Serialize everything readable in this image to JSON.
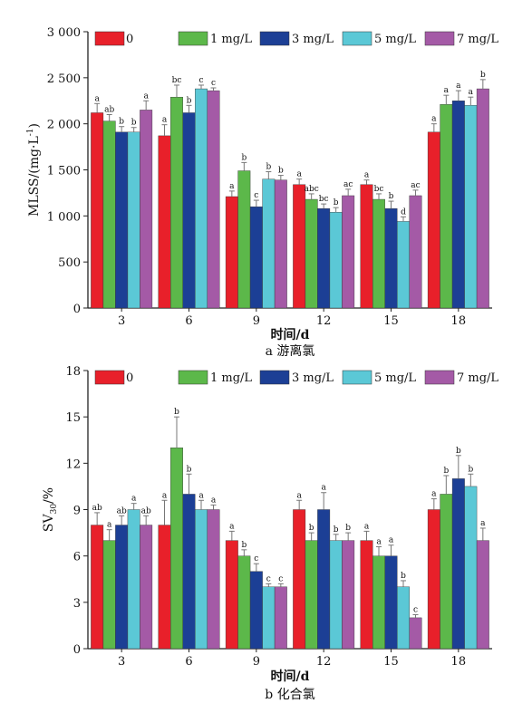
{
  "chart_data": [
    {
      "type": "bar",
      "caption": "a 游离氯",
      "xlabel": "时间/d",
      "ylabel_main": "MLSS/(mg·L",
      "ylabel_sup": "-1",
      "ylabel_end": ")",
      "ylim": [
        0,
        3000
      ],
      "yticks": [
        0,
        500,
        1000,
        1500,
        2000,
        2500,
        3000
      ],
      "ytick_labels": [
        "0",
        "500",
        "1 000",
        "1 500",
        "2 000",
        "2 500",
        "3 000"
      ],
      "categories": [
        "3",
        "6",
        "9",
        "12",
        "15",
        "18"
      ],
      "legend_position": "top",
      "series": [
        {
          "name": "0",
          "color": "#e8202a",
          "values": [
            2120,
            1870,
            1210,
            1340,
            1340,
            1910
          ],
          "errors": [
            100,
            120,
            60,
            60,
            50,
            90
          ],
          "labels": [
            "a",
            "a",
            "a",
            "a",
            "a",
            "a"
          ]
        },
        {
          "name": "1 mg/L",
          "color": "#5cb84a",
          "values": [
            2030,
            2290,
            1490,
            1180,
            1180,
            2210
          ],
          "errors": [
            70,
            130,
            90,
            60,
            60,
            100
          ],
          "labels": [
            "ab",
            "bc",
            "b",
            "abc",
            "bc",
            "a"
          ]
        },
        {
          "name": "3 mg/L",
          "color": "#1c3f95",
          "values": [
            1910,
            2120,
            1100,
            1080,
            1080,
            2250
          ],
          "errors": [
            60,
            80,
            70,
            50,
            80,
            110
          ],
          "labels": [
            "b",
            "b",
            "c",
            "bc",
            "b",
            "a"
          ]
        },
        {
          "name": "5 mg/L",
          "color": "#5bc8d6",
          "values": [
            1910,
            2380,
            1400,
            1040,
            940,
            2200
          ],
          "errors": [
            50,
            40,
            80,
            50,
            50,
            90
          ],
          "labels": [
            "b",
            "c",
            "b",
            "b",
            "d",
            "a"
          ]
        },
        {
          "name": "7 mg/L",
          "color": "#a45aa6",
          "values": [
            2150,
            2360,
            1390,
            1220,
            1220,
            2380
          ],
          "errors": [
            100,
            30,
            50,
            70,
            60,
            100
          ],
          "labels": [
            "a",
            "c",
            "b",
            "ac",
            "ac",
            "b"
          ]
        }
      ]
    },
    {
      "type": "bar",
      "caption": "b 化合氯",
      "xlabel": "时间/d",
      "ylabel_main": "SV",
      "ylabel_sub": "30",
      "ylabel_end": "/%",
      "ylim": [
        0,
        18
      ],
      "yticks": [
        0,
        3,
        6,
        9,
        12,
        15,
        18
      ],
      "ytick_labels": [
        "0",
        "3",
        "6",
        "9",
        "12",
        "15",
        "18"
      ],
      "categories": [
        "3",
        "6",
        "9",
        "12",
        "15",
        "18"
      ],
      "legend_position": "top",
      "series": [
        {
          "name": "0",
          "color": "#e8202a",
          "values": [
            8,
            8,
            7,
            9,
            7,
            9
          ],
          "errors": [
            0.8,
            1.6,
            0.6,
            0.6,
            0.6,
            0.7
          ],
          "labels": [
            "ab",
            "a",
            "a",
            "a",
            "a",
            "a"
          ]
        },
        {
          "name": "1 mg/L",
          "color": "#5cb84a",
          "values": [
            7,
            13,
            6,
            7,
            6,
            10
          ],
          "errors": [
            0.7,
            2.0,
            0.4,
            0.5,
            0.6,
            1.2
          ],
          "labels": [
            "a",
            "b",
            "b",
            "b",
            "a",
            "b"
          ]
        },
        {
          "name": "3 mg/L",
          "color": "#1c3f95",
          "values": [
            8,
            10,
            5,
            9,
            6,
            11
          ],
          "errors": [
            0.6,
            1.3,
            0.5,
            1.1,
            0.7,
            1.5
          ],
          "labels": [
            "ab",
            "b",
            "c",
            "a",
            "a",
            "b"
          ]
        },
        {
          "name": "5 mg/L",
          "color": "#5bc8d6",
          "values": [
            9,
            9,
            4,
            7,
            4,
            10.5
          ],
          "errors": [
            0.4,
            0.6,
            0.2,
            0.4,
            0.4,
            0.8
          ],
          "labels": [
            "a",
            "a",
            "c",
            "b",
            "b",
            "b"
          ]
        },
        {
          "name": "7 mg/L",
          "color": "#a45aa6",
          "values": [
            8,
            9,
            4,
            7,
            2,
            7
          ],
          "errors": [
            0.6,
            0.3,
            0.2,
            0.5,
            0.2,
            0.8
          ],
          "labels": [
            "ab",
            "a",
            "c",
            "b",
            "c",
            "a"
          ]
        }
      ]
    }
  ]
}
